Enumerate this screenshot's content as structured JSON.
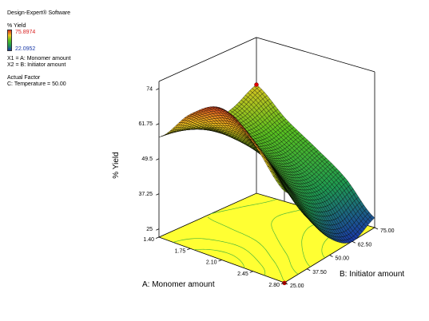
{
  "header": {
    "software": "Design-Expert® Software"
  },
  "legend": {
    "response_label": "% Yield",
    "max_value": "75.8974",
    "min_value": "22.0952",
    "x1_label": "X1 = A: Monomer amount",
    "x2_label": "X2 = B: Initiator amount",
    "actual_factor_title": "Actual Factor",
    "actual_factor_value": "C: Temperature = 50.00"
  },
  "chart_data": {
    "type": "surface",
    "xlabel": "A: Monomer amount",
    "ylabel": "B: Initiator amount",
    "zlabel": "% Yield",
    "x_ticks": [
      "1.40",
      "1.75",
      "2.10",
      "2.45",
      "2.80"
    ],
    "y_ticks": [
      "25.00",
      "37.50",
      "50.00",
      "62.50",
      "75.00"
    ],
    "z_ticks": [
      "25",
      "37.25",
      "49.5",
      "61.75",
      "74"
    ],
    "xlim": [
      1.4,
      2.8
    ],
    "ylim": [
      25,
      75
    ],
    "zlim": [
      22.0952,
      75.8974
    ],
    "grid_x": [
      1.4,
      1.75,
      2.1,
      2.45,
      2.8
    ],
    "grid_y": [
      25,
      37.5,
      50,
      62.5,
      75
    ],
    "z_values": [
      [
        57.0,
        56.0,
        54.0,
        55.5,
        60.0
      ],
      [
        69.0,
        60.0,
        52.0,
        49.0,
        51.0
      ],
      [
        75.0,
        61.0,
        48.0,
        42.0,
        44.0
      ],
      [
        67.0,
        52.0,
        39.0,
        34.0,
        36.5
      ],
      [
        54.0,
        40.0,
        28.0,
        22.0,
        25.5
      ]
    ],
    "design_points": [
      {
        "x": 1.4,
        "y": 75,
        "z": 60.0
      },
      {
        "x": 2.8,
        "y": 25,
        "z": 22.0
      }
    ],
    "colormap": [
      "#1a3aa8",
      "#1f9a50",
      "#58c020",
      "#f2c420",
      "#d93020"
    ],
    "floor_color": "#ffff33"
  }
}
